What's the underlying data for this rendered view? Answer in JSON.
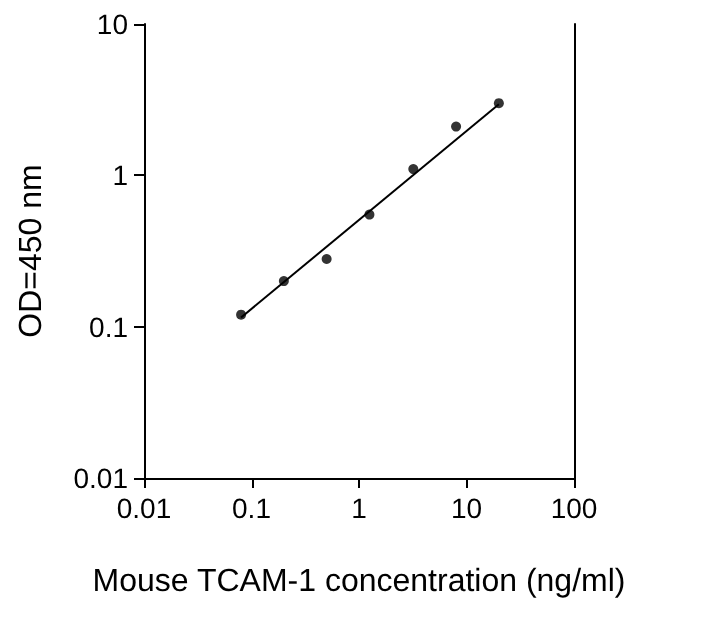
{
  "chart_data": {
    "type": "scatter",
    "xlabel": "Mouse TCAM-1 concentration (ng/ml)",
    "ylabel": "OD=450 nm",
    "log": "xy",
    "xlim": [
      0.01,
      100
    ],
    "xticks": [
      0.01,
      0.1,
      1,
      10,
      100
    ],
    "ylim": [
      0.01,
      10
    ],
    "yticks": [
      0.01,
      0.1,
      1,
      10
    ],
    "grid": false,
    "series": [
      {
        "color": "#000000",
        "marker": "circle",
        "x": [
          0.08,
          0.2,
          0.5,
          1.25,
          3.2,
          8,
          20
        ],
        "values": [
          0.12,
          0.2,
          0.28,
          0.55,
          1.1,
          2.1,
          3.0
        ]
      },
      {
        "type": "line",
        "color": "#000000",
        "marker": "none",
        "line_style": "solid",
        "x": [
          0.08,
          20
        ],
        "values": [
          0.115,
          2.95
        ]
      }
    ]
  }
}
